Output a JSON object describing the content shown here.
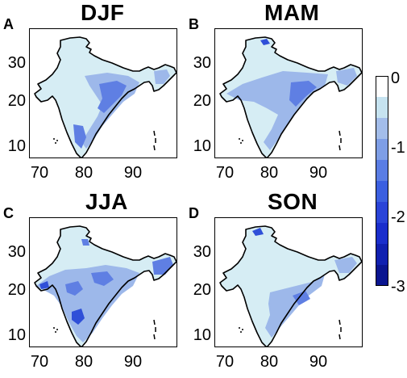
{
  "panels": [
    {
      "label": "A",
      "title": "DJF",
      "x_ticks": [
        "70",
        "80",
        "90"
      ],
      "y_ticks": [
        "30",
        "20",
        "10"
      ]
    },
    {
      "label": "B",
      "title": "MAM",
      "x_ticks": [
        "70",
        "80",
        "90"
      ],
      "y_ticks": [
        "30",
        "20",
        "10"
      ]
    },
    {
      "label": "C",
      "title": "JJA",
      "x_ticks": [
        "70",
        "80",
        "90"
      ],
      "y_ticks": [
        "30",
        "20",
        "10"
      ]
    },
    {
      "label": "D",
      "title": "SON",
      "x_ticks": [
        "70",
        "80",
        "90"
      ],
      "y_ticks": [
        "30",
        "20",
        "10"
      ]
    }
  ],
  "colorbar": {
    "ticks": [
      "0",
      "-1",
      "-2",
      "-3"
    ],
    "range": [
      -3,
      0
    ],
    "colors": [
      "#ffffff",
      "#c6e3f0",
      "#a3bdea",
      "#7e9ee6",
      "#5a7de4",
      "#3b5fe0",
      "#2a44d8",
      "#1a2ecc",
      "#1020b0",
      "#0a1590"
    ]
  },
  "map_colors": {
    "land_light": "#d6edf4",
    "land_mid": "#9db8ea",
    "land_dark": "#5f7fe3",
    "land_deep": "#2f4fd8",
    "outline": "#000000"
  }
}
